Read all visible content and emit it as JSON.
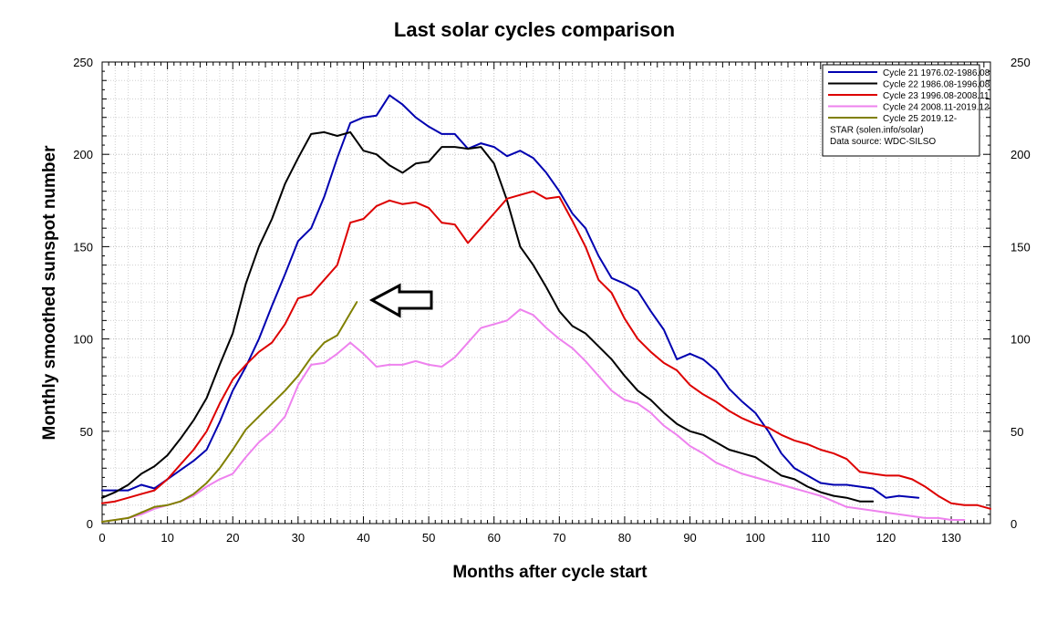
{
  "chart_data": {
    "type": "line",
    "title": "Last solar cycles comparison",
    "xlabel": "Months after cycle start",
    "ylabel": "Monthly smoothed sunspot number",
    "xlim": [
      0,
      136
    ],
    "ylim": [
      0,
      250
    ],
    "x_ticks": [
      0,
      10,
      20,
      30,
      40,
      50,
      60,
      70,
      80,
      90,
      100,
      110,
      120,
      130
    ],
    "y_ticks": [
      0,
      50,
      100,
      150,
      200,
      250
    ],
    "grid": true,
    "legend_position": "top-right",
    "legend_extra": [
      "STAR (solen.info/solar)",
      "Data source: WDC-SILSO"
    ],
    "series": [
      {
        "name": "Cycle 21 1976.02-1986.08",
        "color": "#0000b0",
        "x": [
          0,
          2,
          4,
          6,
          8,
          10,
          12,
          14,
          16,
          18,
          20,
          22,
          24,
          26,
          28,
          30,
          32,
          34,
          36,
          38,
          40,
          42,
          44,
          46,
          48,
          50,
          52,
          54,
          56,
          58,
          60,
          62,
          64,
          66,
          68,
          70,
          72,
          74,
          76,
          78,
          80,
          82,
          84,
          86,
          88,
          90,
          92,
          94,
          96,
          98,
          100,
          102,
          104,
          106,
          108,
          110,
          112,
          114,
          116,
          118,
          120,
          122,
          125
        ],
        "y": [
          18,
          18,
          18,
          21,
          19,
          24,
          29,
          34,
          40,
          55,
          72,
          85,
          100,
          118,
          135,
          153,
          160,
          177,
          198,
          217,
          220,
          221,
          232,
          227,
          220,
          215,
          211,
          211,
          203,
          206,
          204,
          199,
          202,
          198,
          190,
          180,
          168,
          160,
          145,
          133,
          130,
          126,
          115,
          105,
          89,
          92,
          89,
          83,
          73,
          66,
          60,
          50,
          38,
          30,
          26,
          22,
          21,
          21,
          20,
          19,
          14,
          15,
          14
        ]
      },
      {
        "name": "Cycle 22 1986.08-1996.08",
        "color": "#000000",
        "x": [
          0,
          2,
          4,
          6,
          8,
          10,
          12,
          14,
          16,
          18,
          20,
          22,
          24,
          26,
          28,
          30,
          32,
          34,
          36,
          38,
          40,
          42,
          44,
          46,
          48,
          50,
          52,
          54,
          56,
          58,
          60,
          62,
          64,
          66,
          68,
          70,
          72,
          74,
          76,
          78,
          80,
          82,
          84,
          86,
          88,
          90,
          92,
          94,
          96,
          98,
          100,
          102,
          104,
          106,
          108,
          110,
          112,
          114,
          116,
          118
        ],
        "y": [
          14,
          17,
          21,
          27,
          31,
          37,
          46,
          56,
          68,
          86,
          103,
          130,
          150,
          165,
          184,
          198,
          211,
          212,
          210,
          212,
          202,
          200,
          194,
          190,
          195,
          196,
          204,
          204,
          203,
          204,
          195,
          175,
          150,
          140,
          128,
          115,
          107,
          103,
          96,
          89,
          80,
          72,
          67,
          60,
          54,
          50,
          48,
          44,
          40,
          38,
          36,
          31,
          26,
          24,
          20,
          17,
          15,
          14,
          12,
          12
        ]
      },
      {
        "name": "Cycle 23 1996.08-2008.11",
        "color": "#dd0000",
        "x": [
          0,
          2,
          4,
          6,
          8,
          10,
          12,
          14,
          16,
          18,
          20,
          22,
          24,
          26,
          28,
          30,
          32,
          34,
          36,
          38,
          40,
          42,
          44,
          46,
          48,
          50,
          52,
          54,
          56,
          58,
          60,
          62,
          64,
          66,
          68,
          70,
          72,
          74,
          76,
          78,
          80,
          82,
          84,
          86,
          88,
          90,
          92,
          94,
          96,
          98,
          100,
          102,
          104,
          106,
          108,
          110,
          112,
          114,
          116,
          118,
          120,
          122,
          124,
          126,
          128,
          130,
          132,
          134,
          136
        ],
        "y": [
          11,
          12,
          14,
          16,
          18,
          24,
          32,
          40,
          50,
          65,
          78,
          86,
          93,
          98,
          108,
          122,
          124,
          132,
          140,
          163,
          165,
          172,
          175,
          173,
          174,
          171,
          163,
          162,
          152,
          160,
          168,
          176,
          178,
          180,
          176,
          177,
          164,
          150,
          132,
          125,
          111,
          100,
          93,
          87,
          83,
          75,
          70,
          66,
          61,
          57,
          54,
          52,
          48,
          45,
          43,
          40,
          38,
          35,
          28,
          27,
          26,
          26,
          24,
          20,
          15,
          11,
          10,
          10,
          8
        ]
      },
      {
        "name": "Cycle 24 2008.11-2019.12",
        "color": "#ee82ee",
        "x": [
          0,
          2,
          4,
          6,
          8,
          10,
          12,
          14,
          16,
          18,
          20,
          22,
          24,
          26,
          28,
          30,
          32,
          34,
          36,
          38,
          40,
          42,
          44,
          46,
          48,
          50,
          52,
          54,
          56,
          58,
          60,
          62,
          64,
          66,
          68,
          70,
          72,
          74,
          76,
          78,
          80,
          82,
          84,
          86,
          88,
          90,
          92,
          94,
          96,
          98,
          100,
          102,
          104,
          106,
          108,
          110,
          112,
          114,
          116,
          118,
          120,
          122,
          124,
          126,
          128,
          130,
          132
        ],
        "y": [
          1,
          2,
          3,
          5,
          8,
          10,
          12,
          15,
          20,
          24,
          27,
          36,
          44,
          50,
          58,
          75,
          86,
          87,
          92,
          98,
          92,
          85,
          86,
          86,
          88,
          86,
          85,
          90,
          98,
          106,
          108,
          110,
          116,
          113,
          106,
          100,
          95,
          88,
          80,
          72,
          67,
          65,
          60,
          53,
          48,
          42,
          38,
          33,
          30,
          27,
          25,
          23,
          21,
          19,
          17,
          15,
          12,
          9,
          8,
          7,
          6,
          5,
          4,
          3,
          3,
          2,
          2
        ]
      },
      {
        "name": "Cycle 25 2019.12-",
        "color": "#808000",
        "x": [
          0,
          2,
          4,
          6,
          8,
          10,
          12,
          14,
          16,
          18,
          20,
          22,
          24,
          26,
          28,
          30,
          32,
          34,
          36,
          38,
          39
        ],
        "y": [
          1,
          2,
          3,
          6,
          9,
          10,
          12,
          16,
          22,
          30,
          40,
          51,
          58,
          65,
          72,
          80,
          90,
          98,
          102,
          114,
          120
        ]
      }
    ],
    "annotation": "left-pointing arrow at end of Cycle 25"
  }
}
